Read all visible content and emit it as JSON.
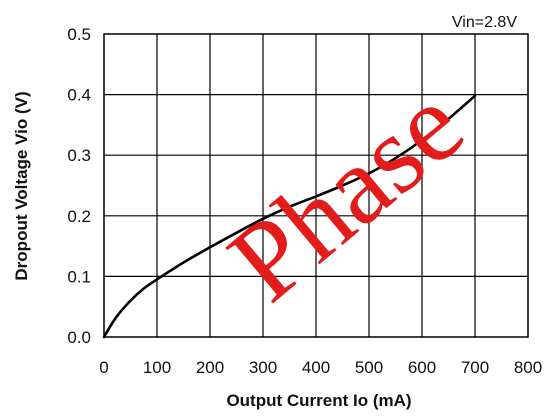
{
  "chart_data": {
    "type": "line",
    "xlabel": "Output Current Io (mA)",
    "ylabel": "Dropout Voltage Vio (V)",
    "annotation": "Vin=2.8V",
    "watermark": "Phase",
    "xlim": [
      0,
      800
    ],
    "ylim": [
      0,
      0.5
    ],
    "xticks": [
      "0",
      "100",
      "200",
      "300",
      "400",
      "500",
      "600",
      "700",
      "800"
    ],
    "yticks": [
      "0.0",
      "0.1",
      "0.2",
      "0.3",
      "0.4",
      "0.5"
    ],
    "grid": true,
    "series": [
      {
        "x": [
          0,
          10,
          25,
          50,
          75,
          100,
          150,
          200,
          250,
          300,
          350,
          400,
          450,
          500,
          550,
          600,
          650,
          700
        ],
        "y": [
          0,
          0.015,
          0.035,
          0.06,
          0.08,
          0.095,
          0.123,
          0.148,
          0.172,
          0.195,
          0.215,
          0.232,
          0.25,
          0.27,
          0.295,
          0.325,
          0.36,
          0.398
        ]
      }
    ]
  }
}
